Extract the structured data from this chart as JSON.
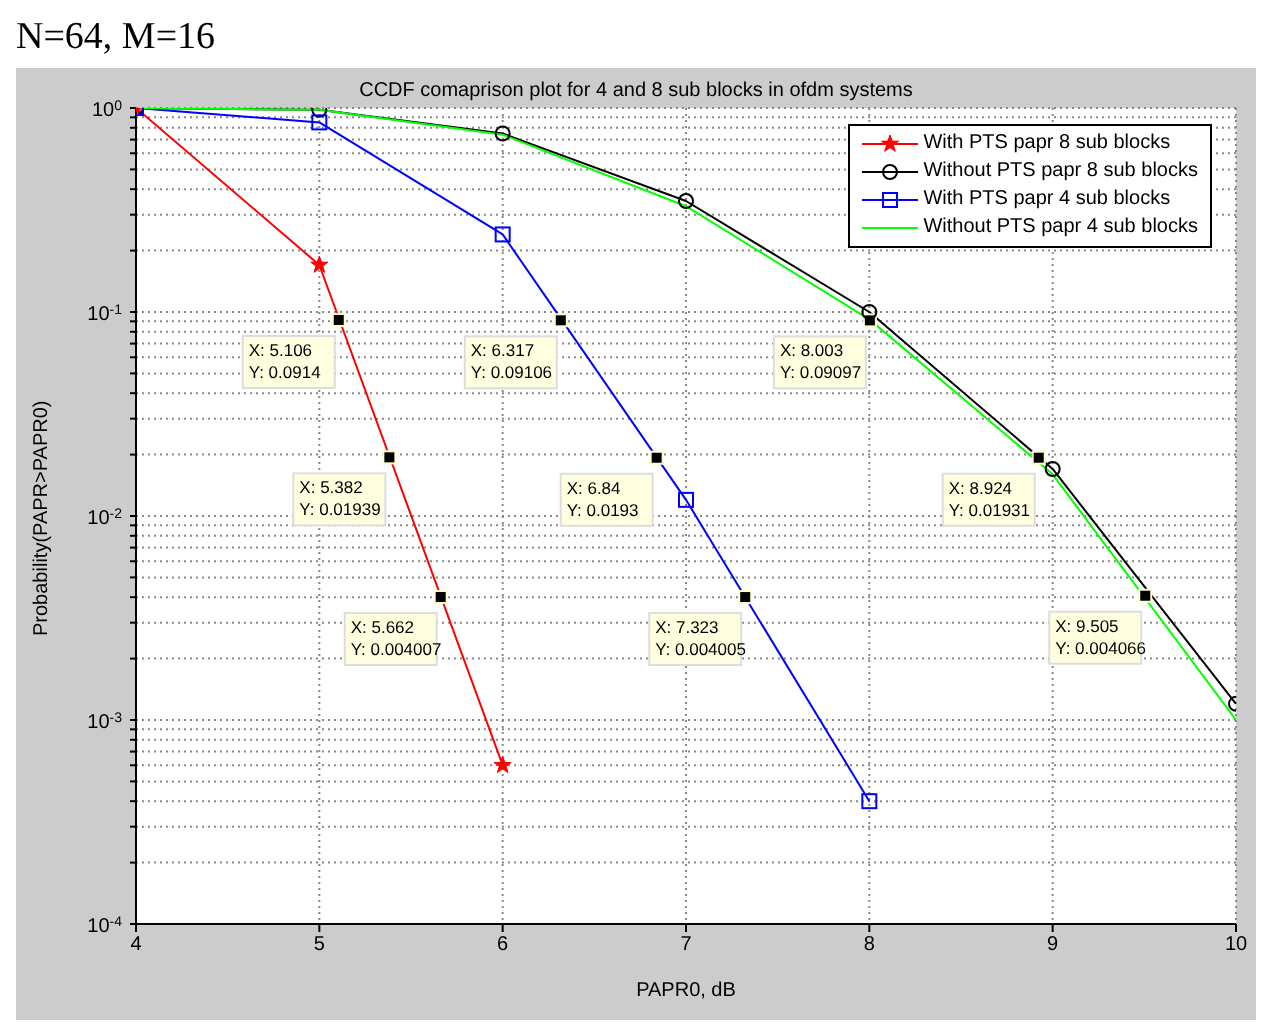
{
  "chart_data": {
    "type": "line",
    "title": "N=64, M=16",
    "subtitle": "CCDF comaprison plot for 4 and 8 sub blocks in ofdm systems",
    "xlabel": "PAPR0, dB",
    "ylabel": "Probability(PAPR>PAPR0)",
    "log": "y",
    "grid": true,
    "legend": "top right",
    "line_style": "solid",
    "xlim": [
      4,
      10
    ],
    "xticks": [
      4,
      5,
      6,
      7,
      8,
      9,
      10
    ],
    "ylim": [
      0.0001,
      1
    ],
    "yticks": [
      {
        "value": 0.0001,
        "label": "10$^{-4}$"
      },
      {
        "value": 0.0002,
        "label": null
      },
      {
        "value": 0.0003,
        "label": null
      },
      {
        "value": 0.0004,
        "label": null
      },
      {
        "value": 0.0005,
        "label": null
      },
      {
        "value": 0.0006,
        "label": null
      },
      {
        "value": 0.0007,
        "label": null
      },
      {
        "value": 0.0008,
        "label": null
      },
      {
        "value": 0.0009,
        "label": null
      },
      {
        "value": 0.001,
        "label": "10$^{-3}$"
      },
      {
        "value": 0.002,
        "label": null
      },
      {
        "value": 0.003,
        "label": null
      },
      {
        "value": 0.004,
        "label": null
      },
      {
        "value": 0.005,
        "label": null
      },
      {
        "value": 0.006,
        "label": null
      },
      {
        "value": 0.007,
        "label": null
      },
      {
        "value": 0.008,
        "label": null
      },
      {
        "value": 0.009,
        "label": null
      },
      {
        "value": 0.01,
        "label": "10$^{-2}$"
      },
      {
        "value": 0.02,
        "label": null
      },
      {
        "value": 0.03,
        "label": null
      },
      {
        "value": 0.04,
        "label": null
      },
      {
        "value": 0.05,
        "label": null
      },
      {
        "value": 0.06,
        "label": null
      },
      {
        "value": 0.07,
        "label": null
      },
      {
        "value": 0.08,
        "label": null
      },
      {
        "value": 0.09,
        "label": null
      },
      {
        "value": 0.1,
        "label": "10$^{-1}$"
      },
      {
        "value": 0.2,
        "label": null
      },
      {
        "value": 0.3,
        "label": null
      },
      {
        "value": 0.4,
        "label": null
      },
      {
        "value": 0.5,
        "label": null
      },
      {
        "value": 0.6,
        "label": null
      },
      {
        "value": 0.7,
        "label": null
      },
      {
        "value": 0.8,
        "label": null
      },
      {
        "value": 0.9,
        "label": null
      },
      {
        "value": 1,
        "label": "10$^{0}$"
      }
    ],
    "x": [
      4,
      5,
      6,
      7,
      8,
      9,
      10
    ],
    "series": [
      {
        "name": "With PTS papr 8 sub blocks",
        "color": "#ff0000",
        "marker": "star",
        "values": [
          1,
          0.17,
          0.0006,
          null,
          null,
          null,
          null
        ]
      },
      {
        "name": "Without PTS papr 8 sub blocks",
        "color": "#000000",
        "marker": "circle",
        "values": [
          1,
          0.98,
          0.75,
          0.35,
          0.1,
          0.017,
          0.0012
        ]
      },
      {
        "name": "With PTS papr 4 sub blocks",
        "color": "#0000ff",
        "marker": "square",
        "values": [
          1,
          0.85,
          0.24,
          0.012,
          0.0004,
          null,
          null
        ]
      },
      {
        "name": "Without PTS papr 4 sub blocks",
        "color": "#00ff00",
        "marker": "none",
        "values": [
          1,
          0.98,
          0.74,
          0.33,
          0.092,
          0.016,
          0.001
        ]
      }
    ],
    "annotations": [
      {
        "text": "X: 5.106\nY: 0.0914",
        "x": 5.106,
        "y": 0.0914
      },
      {
        "text": "X: 5.382\nY: 0.01939",
        "x": 5.382,
        "y": 0.01939
      },
      {
        "text": "X: 5.662\nY: 0.004007",
        "x": 5.662,
        "y": 0.004007
      },
      {
        "text": "X: 6.317\nY: 0.09106",
        "x": 6.317,
        "y": 0.09106
      },
      {
        "text": "X: 6.84\nY: 0.0193",
        "x": 6.84,
        "y": 0.0193
      },
      {
        "text": "X: 7.323\nY: 0.004005",
        "x": 7.323,
        "y": 0.004005
      },
      {
        "text": "X: 8.003\nY: 0.09097",
        "x": 8.003,
        "y": 0.09097
      },
      {
        "text": "X: 8.924\nY: 0.01931",
        "x": 8.924,
        "y": 0.01931
      },
      {
        "text": "X: 9.505\nY: 0.004066",
        "x": 9.505,
        "y": 0.004066
      }
    ]
  }
}
